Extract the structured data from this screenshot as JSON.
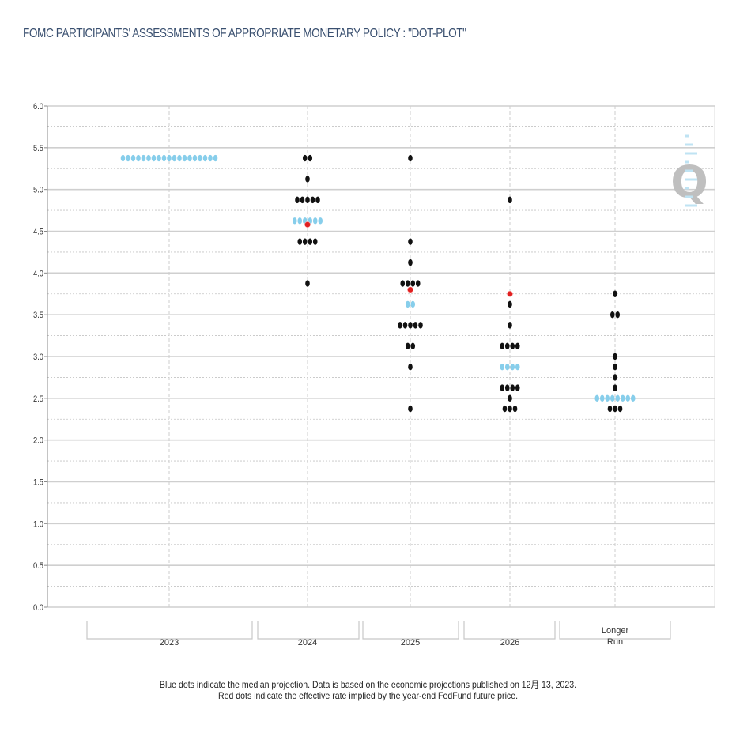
{
  "header": {
    "title": "FOMC PARTICIPANTS' ASSESSMENTS OF APPROPRIATE MONETARY POLICY : \"DOT-PLOT\""
  },
  "footer": {
    "line1": "Blue dots indicate the median projection. Data is based on the economic projections published on 12月 13, 2023.",
    "line2": "Red dots indicate the effective rate implied by the year-end FedFund future price."
  },
  "watermark": {
    "letter": "Q"
  },
  "colors": {
    "participant": "#111111",
    "median": "#87ceeb",
    "implied": "#e02020",
    "grid": "#cccccc"
  },
  "chart_data": {
    "type": "scatter",
    "title": "FOMC PARTICIPANTS' ASSESSMENTS OF APPROPRIATE MONETARY POLICY : \"DOT-PLOT\"",
    "xlabel": "",
    "ylabel": "",
    "ylim": [
      0,
      6
    ],
    "yticks": [
      "0.0",
      "0.5",
      "1.0",
      "1.5",
      "2.0",
      "2.5",
      "3.0",
      "3.5",
      "4.0",
      "4.5",
      "5.0",
      "5.5",
      "6.0"
    ],
    "categories": [
      "2023",
      "2024",
      "2025",
      "2026",
      "Longer Run"
    ],
    "grid": true,
    "series": [
      {
        "kind": "participant",
        "points": [
          {
            "x": "2024",
            "rates": [
              {
                "y": 5.375,
                "count": 2
              },
              {
                "y": 5.125,
                "count": 1
              },
              {
                "y": 4.875,
                "count": 5
              },
              {
                "y": 4.375,
                "count": 4
              },
              {
                "y": 3.875,
                "count": 1
              }
            ]
          },
          {
            "x": "2025",
            "rates": [
              {
                "y": 5.375,
                "count": 1
              },
              {
                "y": 4.375,
                "count": 1
              },
              {
                "y": 4.125,
                "count": 1
              },
              {
                "y": 3.875,
                "count": 4
              },
              {
                "y": 3.375,
                "count": 5
              },
              {
                "y": 3.125,
                "count": 2
              },
              {
                "y": 2.875,
                "count": 1
              },
              {
                "y": 2.375,
                "count": 1
              }
            ]
          },
          {
            "x": "2026",
            "rates": [
              {
                "y": 4.875,
                "count": 1
              },
              {
                "y": 3.625,
                "count": 1
              },
              {
                "y": 3.375,
                "count": 1
              },
              {
                "y": 3.125,
                "count": 4
              },
              {
                "y": 2.625,
                "count": 4
              },
              {
                "y": 2.5,
                "count": 1
              },
              {
                "y": 2.375,
                "count": 3
              }
            ]
          },
          {
            "x": "Longer Run",
            "rates": [
              {
                "y": 3.75,
                "count": 1
              },
              {
                "y": 3.5,
                "count": 2
              },
              {
                "y": 3.0,
                "count": 1
              },
              {
                "y": 2.875,
                "count": 1
              },
              {
                "y": 2.75,
                "count": 1
              },
              {
                "y": 2.625,
                "count": 1
              },
              {
                "y": 2.375,
                "count": 3
              }
            ]
          }
        ]
      },
      {
        "kind": "median",
        "points": [
          {
            "x": "2023",
            "y": 5.375,
            "count": 19
          },
          {
            "x": "2024",
            "y": 4.625,
            "count": 6
          },
          {
            "x": "2025",
            "y": 3.625,
            "count": 2
          },
          {
            "x": "2026",
            "y": 2.875,
            "count": 4
          },
          {
            "x": "Longer Run",
            "y": 2.5,
            "count": 8
          }
        ]
      },
      {
        "kind": "implied",
        "points": [
          {
            "x": "2024",
            "y": 4.58
          },
          {
            "x": "2025",
            "y": 3.8
          },
          {
            "x": "2026",
            "y": 3.75
          }
        ]
      }
    ]
  }
}
